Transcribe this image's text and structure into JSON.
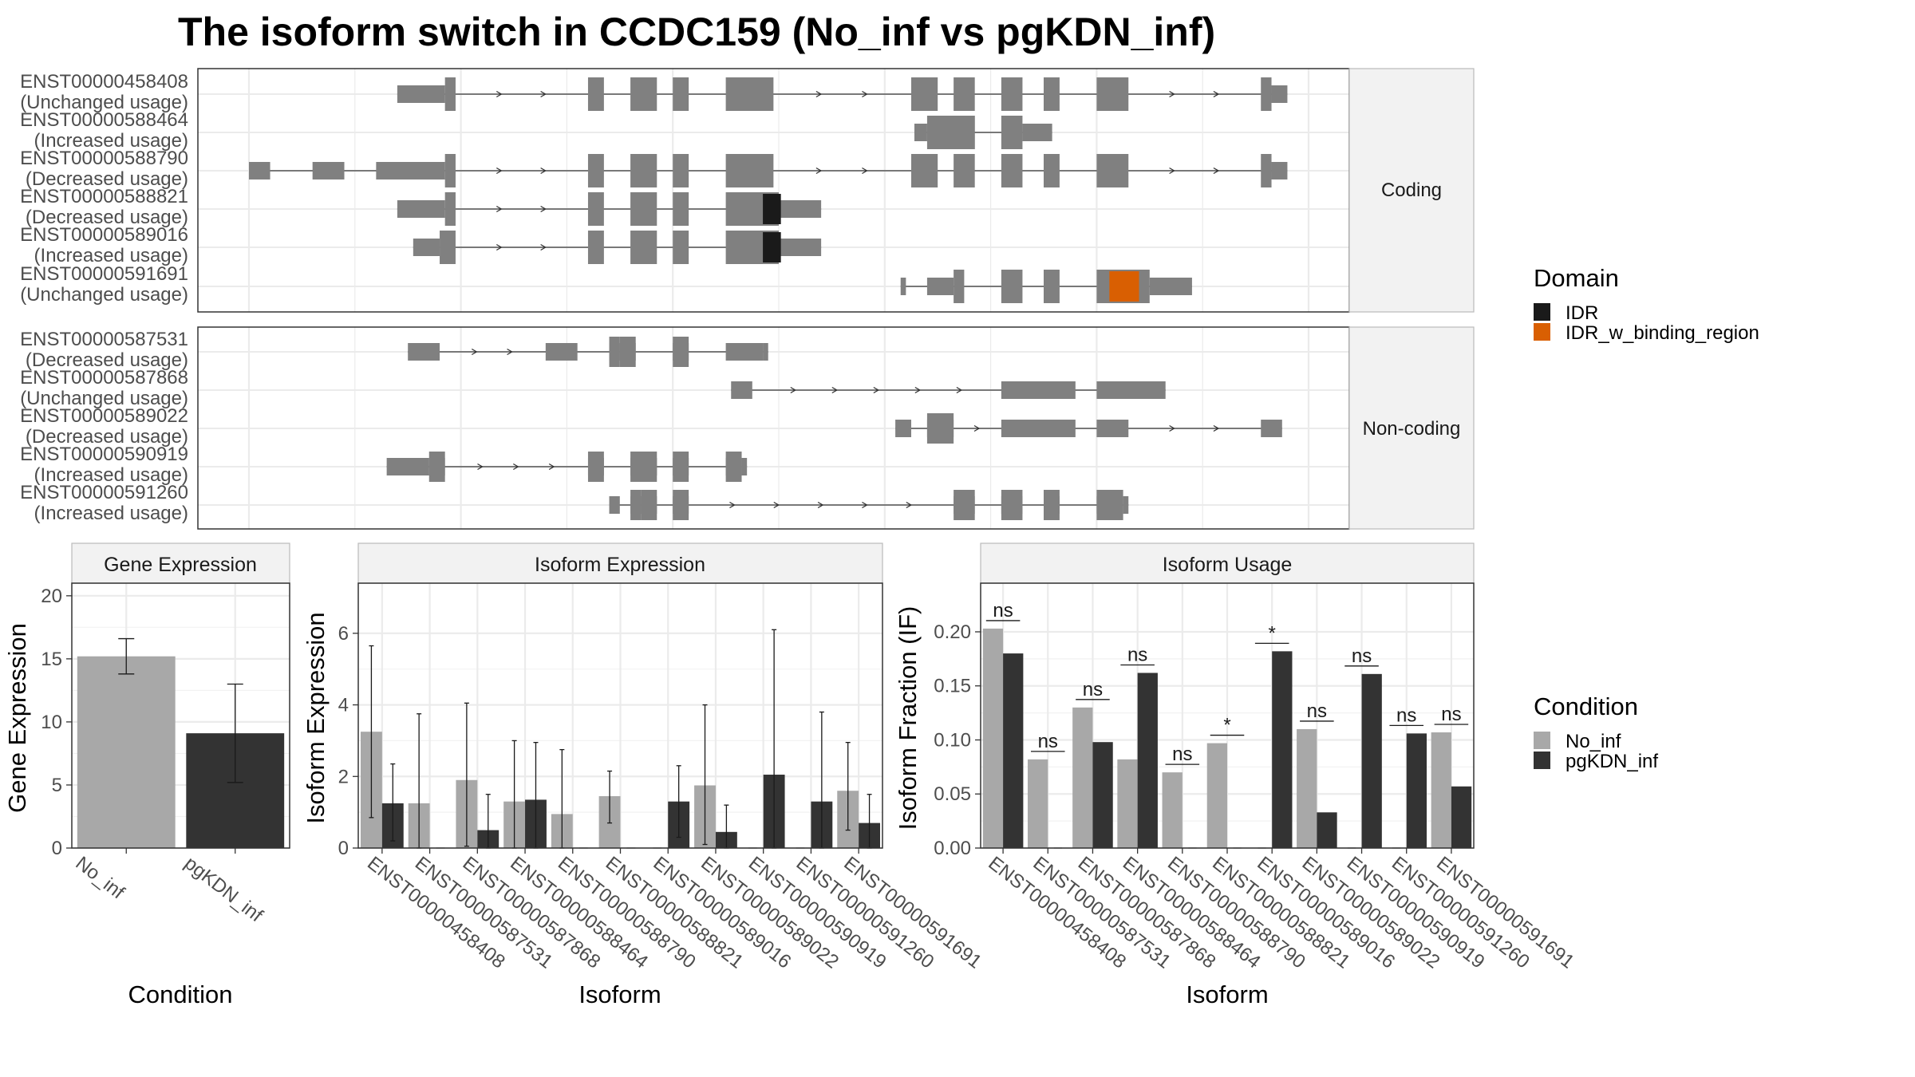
{
  "title": "The isoform switch in CCDC159 (No_inf vs pgKDN_inf)",
  "colors": {
    "no_inf": "#a8a8a8",
    "pgkdn_inf": "#333333",
    "exon": "#808080",
    "idr": "#1a1a1a",
    "idr_w_binding_region": "#d95f02",
    "grid": "#ebebeb",
    "strip": "#f2f2f2",
    "panel_border": "#333333"
  },
  "structure_panel": {
    "chart_data": {
      "type": "gene_structure",
      "x_range": [
        0,
        100
      ],
      "facets": [
        "Coding",
        "Non-coding"
      ],
      "isoforms": [
        {
          "id": "ENST00000458408",
          "usage": "(Unchanged usage)",
          "facet": "Coding",
          "coding": true,
          "utr": [
            [
              14,
              18.5
            ],
            [
              96.5,
              98
            ]
          ],
          "cds": [
            [
              18.5,
              19.5
            ],
            [
              32,
              33.5
            ],
            [
              36,
              38.5
            ],
            [
              40,
              41.5
            ],
            [
              45,
              49.5
            ],
            [
              62.5,
              65
            ],
            [
              66.5,
              68.5
            ],
            [
              71,
              73
            ],
            [
              75,
              76.5
            ],
            [
              80,
              83
            ],
            [
              95.5,
              96.5
            ]
          ],
          "domains": []
        },
        {
          "id": "ENST00000588464",
          "usage": "(Increased usage)",
          "facet": "Coding",
          "coding": true,
          "utr": [
            [
              62.8,
              64
            ],
            [
              73,
              75.8
            ]
          ],
          "cds": [
            [
              64,
              68.5
            ],
            [
              66.5,
              68.5
            ],
            [
              71,
              73
            ]
          ],
          "domains": []
        },
        {
          "id": "ENST00000588790",
          "usage": "(Decreased usage)",
          "facet": "Coding",
          "coding": true,
          "utr": [
            [
              0,
              2
            ],
            [
              6,
              9
            ],
            [
              12,
              18.5
            ],
            [
              96.5,
              98
            ]
          ],
          "cds": [
            [
              18.5,
              19.5
            ],
            [
              32,
              33.5
            ],
            [
              36,
              38.5
            ],
            [
              40,
              41.5
            ],
            [
              45,
              49.5
            ],
            [
              62.5,
              65
            ],
            [
              66.5,
              68.5
            ],
            [
              71,
              73
            ],
            [
              75,
              76.5
            ],
            [
              80,
              83
            ],
            [
              95.5,
              96.5
            ]
          ],
          "domains": []
        },
        {
          "id": "ENST00000588821",
          "usage": "(Decreased usage)",
          "facet": "Coding",
          "coding": true,
          "utr": [
            [
              14,
              18.5
            ],
            [
              50,
              54
            ]
          ],
          "cds": [
            [
              18.5,
              19.5
            ],
            [
              32,
              33.5
            ],
            [
              36,
              38.5
            ],
            [
              40,
              41.5
            ],
            [
              45,
              50
            ]
          ],
          "domains": [
            {
              "name": "IDR",
              "start": 48.5,
              "end": 50.2
            }
          ]
        },
        {
          "id": "ENST00000589016",
          "usage": "(Increased usage)",
          "facet": "Coding",
          "coding": true,
          "utr": [
            [
              15.5,
              18
            ],
            [
              50,
              54
            ]
          ],
          "cds": [
            [
              18,
              19.5
            ],
            [
              32,
              33.5
            ],
            [
              36,
              38.5
            ],
            [
              40,
              41.5
            ],
            [
              45,
              50
            ]
          ],
          "domains": [
            {
              "name": "IDR",
              "start": 48.5,
              "end": 50.2
            }
          ]
        },
        {
          "id": "ENST00000591691",
          "usage": "(Unchanged usage)",
          "facet": "Coding",
          "coding": true,
          "utr": [
            [
              61.5,
              62
            ],
            [
              64,
              66.5
            ],
            [
              85,
              89
            ]
          ],
          "cds": [
            [
              66.5,
              67.5
            ],
            [
              71,
              73
            ],
            [
              75,
              76.5
            ],
            [
              80,
              85
            ]
          ],
          "domains": [
            {
              "name": "IDR_w_binding_region",
              "start": 81.2,
              "end": 84
            }
          ]
        },
        {
          "id": "ENST00000587531",
          "usage": "(Decreased usage)",
          "facet": "Non-coding",
          "coding": false,
          "exons": [
            [
              15,
              18
            ],
            [
              28,
              31
            ],
            [
              34,
              35
            ],
            [
              35,
              36.5
            ],
            [
              40,
              41.5
            ],
            [
              45,
              48.5
            ],
            [
              48.5,
              49
            ]
          ]
        },
        {
          "id": "ENST00000587868",
          "usage": "(Unchanged usage)",
          "facet": "Non-coding",
          "coding": false,
          "exons": [
            [
              45.5,
              47.5
            ],
            [
              71,
              78
            ],
            [
              80,
              86.5
            ]
          ]
        },
        {
          "id": "ENST00000589022",
          "usage": "(Decreased usage)",
          "facet": "Non-coding",
          "coding": false,
          "exons": [
            [
              61,
              62.5
            ],
            [
              64,
              66.5
            ],
            [
              71,
              78
            ],
            [
              80,
              83
            ],
            [
              95.5,
              97.5
            ]
          ]
        },
        {
          "id": "ENST00000590919",
          "usage": "(Increased usage)",
          "facet": "Non-coding",
          "coding": false,
          "exons": [
            [
              13,
              17
            ],
            [
              17,
              18.5
            ],
            [
              32,
              33.5
            ],
            [
              36,
              38.5
            ],
            [
              40,
              41.5
            ],
            [
              45,
              46.5
            ],
            [
              46.5,
              47
            ]
          ]
        },
        {
          "id": "ENST00000591260",
          "usage": "(Increased usage)",
          "facet": "Non-coding",
          "coding": false,
          "exons": [
            [
              34,
              35
            ],
            [
              36,
              37
            ],
            [
              37,
              38.5
            ],
            [
              40,
              41.5
            ],
            [
              66.5,
              68.5
            ],
            [
              71,
              73
            ],
            [
              75,
              76.5
            ],
            [
              80,
              82.5
            ],
            [
              82.5,
              83
            ]
          ]
        }
      ]
    },
    "legend": {
      "title": "Domain",
      "items": [
        "IDR",
        "IDR_w_binding_region"
      ]
    }
  },
  "gene_expression": {
    "chart_data": {
      "type": "bar",
      "strip": "Gene Expression",
      "categories": [
        "No_inf",
        "pgKDN_inf"
      ],
      "values": [
        15.2,
        9.1
      ],
      "err_low": [
        13.8,
        5.2
      ],
      "err_high": [
        16.6,
        13.0
      ],
      "ylim": [
        0,
        21
      ],
      "yticks": [
        0,
        5,
        10,
        15,
        20
      ],
      "xlabel": "Condition",
      "ylabel": "Gene Expression",
      "grid": true
    }
  },
  "isoform_expression": {
    "chart_data": {
      "type": "bar",
      "strip": "Isoform Expression",
      "categories": [
        "ENST00000458408",
        "ENST00000587531",
        "ENST00000587868",
        "ENST00000588464",
        "ENST00000588790",
        "ENST00000588821",
        "ENST00000589016",
        "ENST00000589022",
        "ENST00000590919",
        "ENST00000591260",
        "ENST00000591691"
      ],
      "series": [
        {
          "name": "No_inf",
          "values": [
            3.25,
            1.25,
            1.9,
            1.3,
            0.95,
            1.45,
            0,
            1.75,
            0,
            0,
            1.6
          ],
          "err_low": [
            0.85,
            0,
            0.05,
            0,
            0,
            0.7,
            0,
            0.1,
            0,
            0,
            0.5
          ],
          "err_high": [
            5.65,
            3.75,
            4.05,
            3.0,
            2.75,
            2.15,
            0,
            4.0,
            0,
            0,
            2.95
          ]
        },
        {
          "name": "pgKDN_inf",
          "values": [
            1.25,
            0,
            0.5,
            1.35,
            0,
            0,
            1.3,
            0.45,
            2.05,
            1.3,
            0.7
          ],
          "err_low": [
            0.2,
            0,
            0,
            0,
            0,
            0,
            0.3,
            0,
            0,
            0,
            0
          ],
          "err_high": [
            2.35,
            0,
            1.5,
            2.95,
            0,
            0,
            2.3,
            1.2,
            6.1,
            3.8,
            1.5
          ]
        }
      ],
      "ylim": [
        0,
        7.4
      ],
      "yticks": [
        0,
        2,
        4,
        6
      ],
      "xlabel": "Isoform",
      "ylabel": "Isoform Expression",
      "grid": true
    }
  },
  "isoform_usage": {
    "chart_data": {
      "type": "bar",
      "strip": "Isoform Usage",
      "categories": [
        "ENST00000458408",
        "ENST00000587531",
        "ENST00000587868",
        "ENST00000588464",
        "ENST00000588790",
        "ENST00000588821",
        "ENST00000589016",
        "ENST00000589022",
        "ENST00000590919",
        "ENST00000591260",
        "ENST00000591691"
      ],
      "series": [
        {
          "name": "No_inf",
          "values": [
            0.203,
            0.082,
            0.13,
            0.082,
            0.07,
            0.097,
            0,
            0.11,
            0,
            0,
            0.107
          ]
        },
        {
          "name": "pgKDN_inf",
          "values": [
            0.18,
            0,
            0.098,
            0.162,
            0,
            0,
            0.182,
            0.033,
            0.161,
            0.106,
            0.057
          ]
        }
      ],
      "significance": [
        "ns",
        "ns",
        "ns",
        "ns",
        "ns",
        "*",
        "*",
        "ns",
        "ns",
        "ns",
        "ns"
      ],
      "ylim": [
        0,
        0.245
      ],
      "yticks": [
        0.0,
        0.05,
        0.1,
        0.15,
        0.2
      ],
      "ytick_labels": [
        "0.00",
        "0.05",
        "0.10",
        "0.15",
        "0.20"
      ],
      "xlabel": "Isoform",
      "ylabel": "Isoform Fraction (IF)",
      "grid": true
    }
  },
  "condition_legend": {
    "title": "Condition",
    "items": [
      "No_inf",
      "pgKDN_inf"
    ]
  }
}
